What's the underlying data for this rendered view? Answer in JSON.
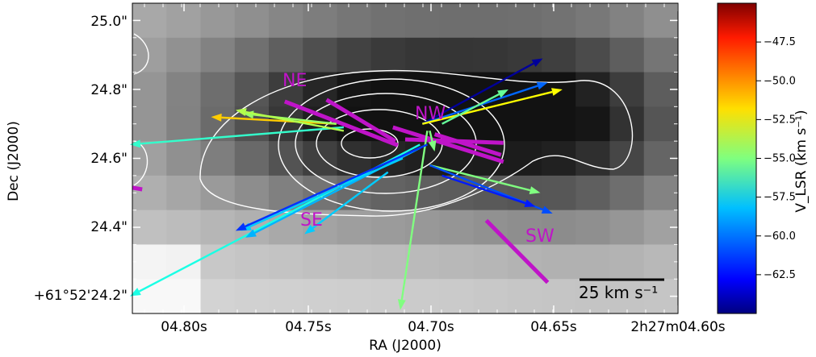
{
  "chart_data": {
    "type": "heatmap",
    "xlabel": "RA (J2000)",
    "ylabel": "Dec (J2000)",
    "x_ticks": [
      "04.80s",
      "04.75s",
      "04.70s",
      "04.65s",
      "2h27m04.60s"
    ],
    "y_ticks": [
      "+61°52'24.2\"",
      "24.4\"",
      "24.6\"",
      "24.8\"",
      "25.0\""
    ],
    "x_range_s": [
      4.822,
      4.6
    ],
    "y_range_arcsec": [
      24.15,
      25.05
    ],
    "background": "grayscale continuum image with white contours",
    "region_labels": [
      "NE",
      "NW",
      "SE",
      "SW"
    ],
    "colorbar": {
      "label": "V_LSR (km s⁻¹)",
      "ticks": [
        -47.5,
        -50.0,
        -52.5,
        -55.0,
        -57.5,
        -60.0,
        -62.5
      ],
      "range": [
        -65.0,
        -45.0
      ],
      "colormap": "jet"
    },
    "scale_bar": {
      "label": "25 km s⁻¹",
      "value_kms": 25
    },
    "magenta_bars": [
      {
        "x1": 4.76,
        "y1": 24.765,
        "x2": 4.714,
        "y2": 24.638
      },
      {
        "x1": 4.743,
        "y1": 24.77,
        "x2": 4.715,
        "y2": 24.65
      },
      {
        "x1": 4.716,
        "y1": 24.69,
        "x2": 4.671,
        "y2": 24.59
      },
      {
        "x1": 4.711,
        "y1": 24.655,
        "x2": 4.671,
        "y2": 24.645
      },
      {
        "x1": 4.699,
        "y1": 24.67,
        "x2": 4.672,
        "y2": 24.61
      },
      {
        "x1": 4.678,
        "y1": 24.42,
        "x2": 4.653,
        "y2": 24.24
      },
      {
        "x1": 4.822,
        "y1": 24.515,
        "x2": 4.818,
        "y2": 24.51
      }
    ],
    "arrows": [
      {
        "x1": 4.704,
        "y1": 24.7,
        "x2": 4.655,
        "y2": 24.89,
        "v": -64.5
      },
      {
        "x1": 4.704,
        "y1": 24.7,
        "x2": 4.653,
        "y2": 24.82,
        "v": -60.5
      },
      {
        "x1": 4.704,
        "y1": 24.7,
        "x2": 4.647,
        "y2": 24.8,
        "v": -52.5
      },
      {
        "x1": 4.696,
        "y1": 24.7,
        "x2": 4.669,
        "y2": 24.8,
        "v": -55.5
      },
      {
        "x1": 4.701,
        "y1": 24.68,
        "x2": 4.699,
        "y2": 24.62,
        "v": -55.0
      },
      {
        "x1": 4.702,
        "y1": 24.68,
        "x2": 4.713,
        "y2": 24.16,
        "v": -55.0
      },
      {
        "x1": 4.701,
        "y1": 24.58,
        "x2": 4.656,
        "y2": 24.5,
        "v": -55.0
      },
      {
        "x1": 4.701,
        "y1": 24.58,
        "x2": 4.651,
        "y2": 24.44,
        "v": -61.0
      },
      {
        "x1": 4.696,
        "y1": 24.55,
        "x2": 4.658,
        "y2": 24.46,
        "v": -62.0
      },
      {
        "x1": 4.739,
        "y1": 24.7,
        "x2": 4.79,
        "y2": 24.72,
        "v": -51.5
      },
      {
        "x1": 4.739,
        "y1": 24.7,
        "x2": 4.777,
        "y2": 24.73,
        "v": -54.5
      },
      {
        "x1": 4.736,
        "y1": 24.69,
        "x2": 4.823,
        "y2": 24.64,
        "v": -56.5
      },
      {
        "x1": 4.736,
        "y1": 24.68,
        "x2": 4.78,
        "y2": 24.74,
        "v": -54.0
      },
      {
        "x1": 4.705,
        "y1": 24.64,
        "x2": 4.823,
        "y2": 24.2,
        "v": -57.0
      },
      {
        "x1": 4.705,
        "y1": 24.63,
        "x2": 4.776,
        "y2": 24.37,
        "v": -59.0
      },
      {
        "x1": 4.712,
        "y1": 24.6,
        "x2": 4.778,
        "y2": 24.39,
        "v": -58.5
      },
      {
        "x1": 4.702,
        "y1": 24.64,
        "x2": 4.78,
        "y2": 24.39,
        "v": -61.5
      },
      {
        "x1": 4.718,
        "y1": 24.56,
        "x2": 4.752,
        "y2": 24.38,
        "v": -58.5
      }
    ]
  }
}
